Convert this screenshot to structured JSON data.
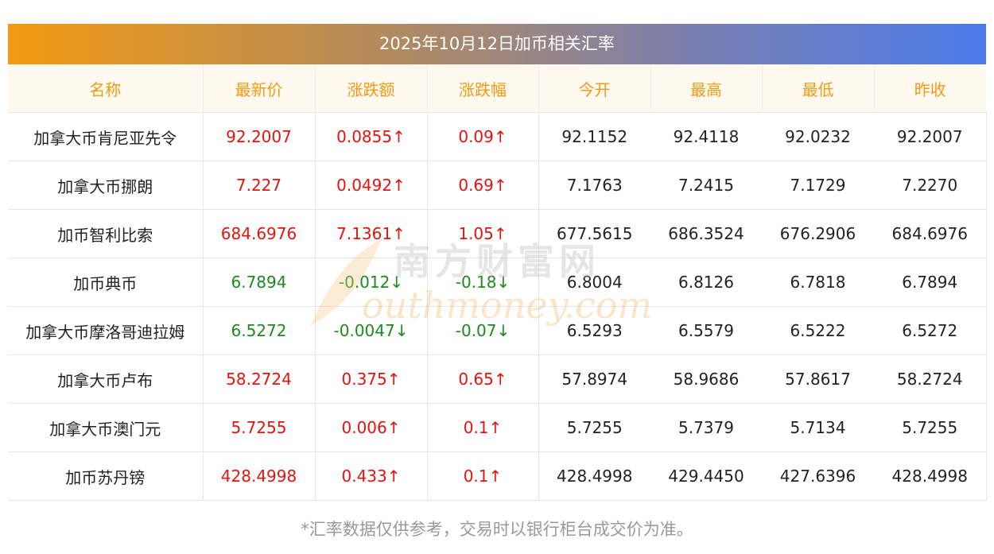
{
  "title": "2025年10月12日加币相关汇率",
  "headers": [
    "名称",
    "最新价",
    "涨跌额",
    "涨跌幅",
    "今开",
    "最高",
    "最低",
    "昨收"
  ],
  "rows": [
    {
      "name": "加拿大币肯尼亚先令",
      "latest": "92.2007",
      "change": "0.0855↑",
      "pct": "0.09↑",
      "open": "92.1152",
      "high": "92.4118",
      "low": "92.0232",
      "prev": "92.2007",
      "dir": "up"
    },
    {
      "name": "加拿大币挪朗",
      "latest": "7.227",
      "change": "0.0492↑",
      "pct": "0.69↑",
      "open": "7.1763",
      "high": "7.2415",
      "low": "7.1729",
      "prev": "7.2270",
      "dir": "up"
    },
    {
      "name": "加币智利比索",
      "latest": "684.6976",
      "change": "7.1361↑",
      "pct": "1.05↑",
      "open": "677.5615",
      "high": "686.3524",
      "low": "676.2906",
      "prev": "684.6976",
      "dir": "up"
    },
    {
      "name": "加币典币",
      "latest": "6.7894",
      "change": "-0.012↓",
      "pct": "-0.18↓",
      "open": "6.8004",
      "high": "6.8126",
      "low": "6.7818",
      "prev": "6.7894",
      "dir": "down"
    },
    {
      "name": "加拿大币摩洛哥迪拉姆",
      "latest": "6.5272",
      "change": "-0.0047↓",
      "pct": "-0.07↓",
      "open": "6.5293",
      "high": "6.5579",
      "low": "6.5222",
      "prev": "6.5272",
      "dir": "down"
    },
    {
      "name": "加拿大币卢布",
      "latest": "58.2724",
      "change": "0.375↑",
      "pct": "0.65↑",
      "open": "57.8974",
      "high": "58.9686",
      "low": "57.8617",
      "prev": "58.2724",
      "dir": "up"
    },
    {
      "name": "加拿大币澳门元",
      "latest": "5.7255",
      "change": "0.006↑",
      "pct": "0.1↑",
      "open": "5.7255",
      "high": "5.7379",
      "low": "5.7134",
      "prev": "5.7255",
      "dir": "up"
    },
    {
      "name": "加币苏丹镑",
      "latest": "428.4998",
      "change": "0.433↑",
      "pct": "0.1↑",
      "open": "428.4998",
      "high": "429.4450",
      "low": "427.6396",
      "prev": "428.4998",
      "dir": "up"
    }
  ],
  "note": "*汇率数据仅供参考，交易时以银行柜台成交价为准。",
  "watermark": {
    "cn": "南方财富网",
    "en": "outhmoney.com"
  },
  "colors": {
    "up": "#e4130f",
    "down": "#1d8a1d",
    "header_text": "#f39a12",
    "header_bg": "#fff9f0"
  }
}
